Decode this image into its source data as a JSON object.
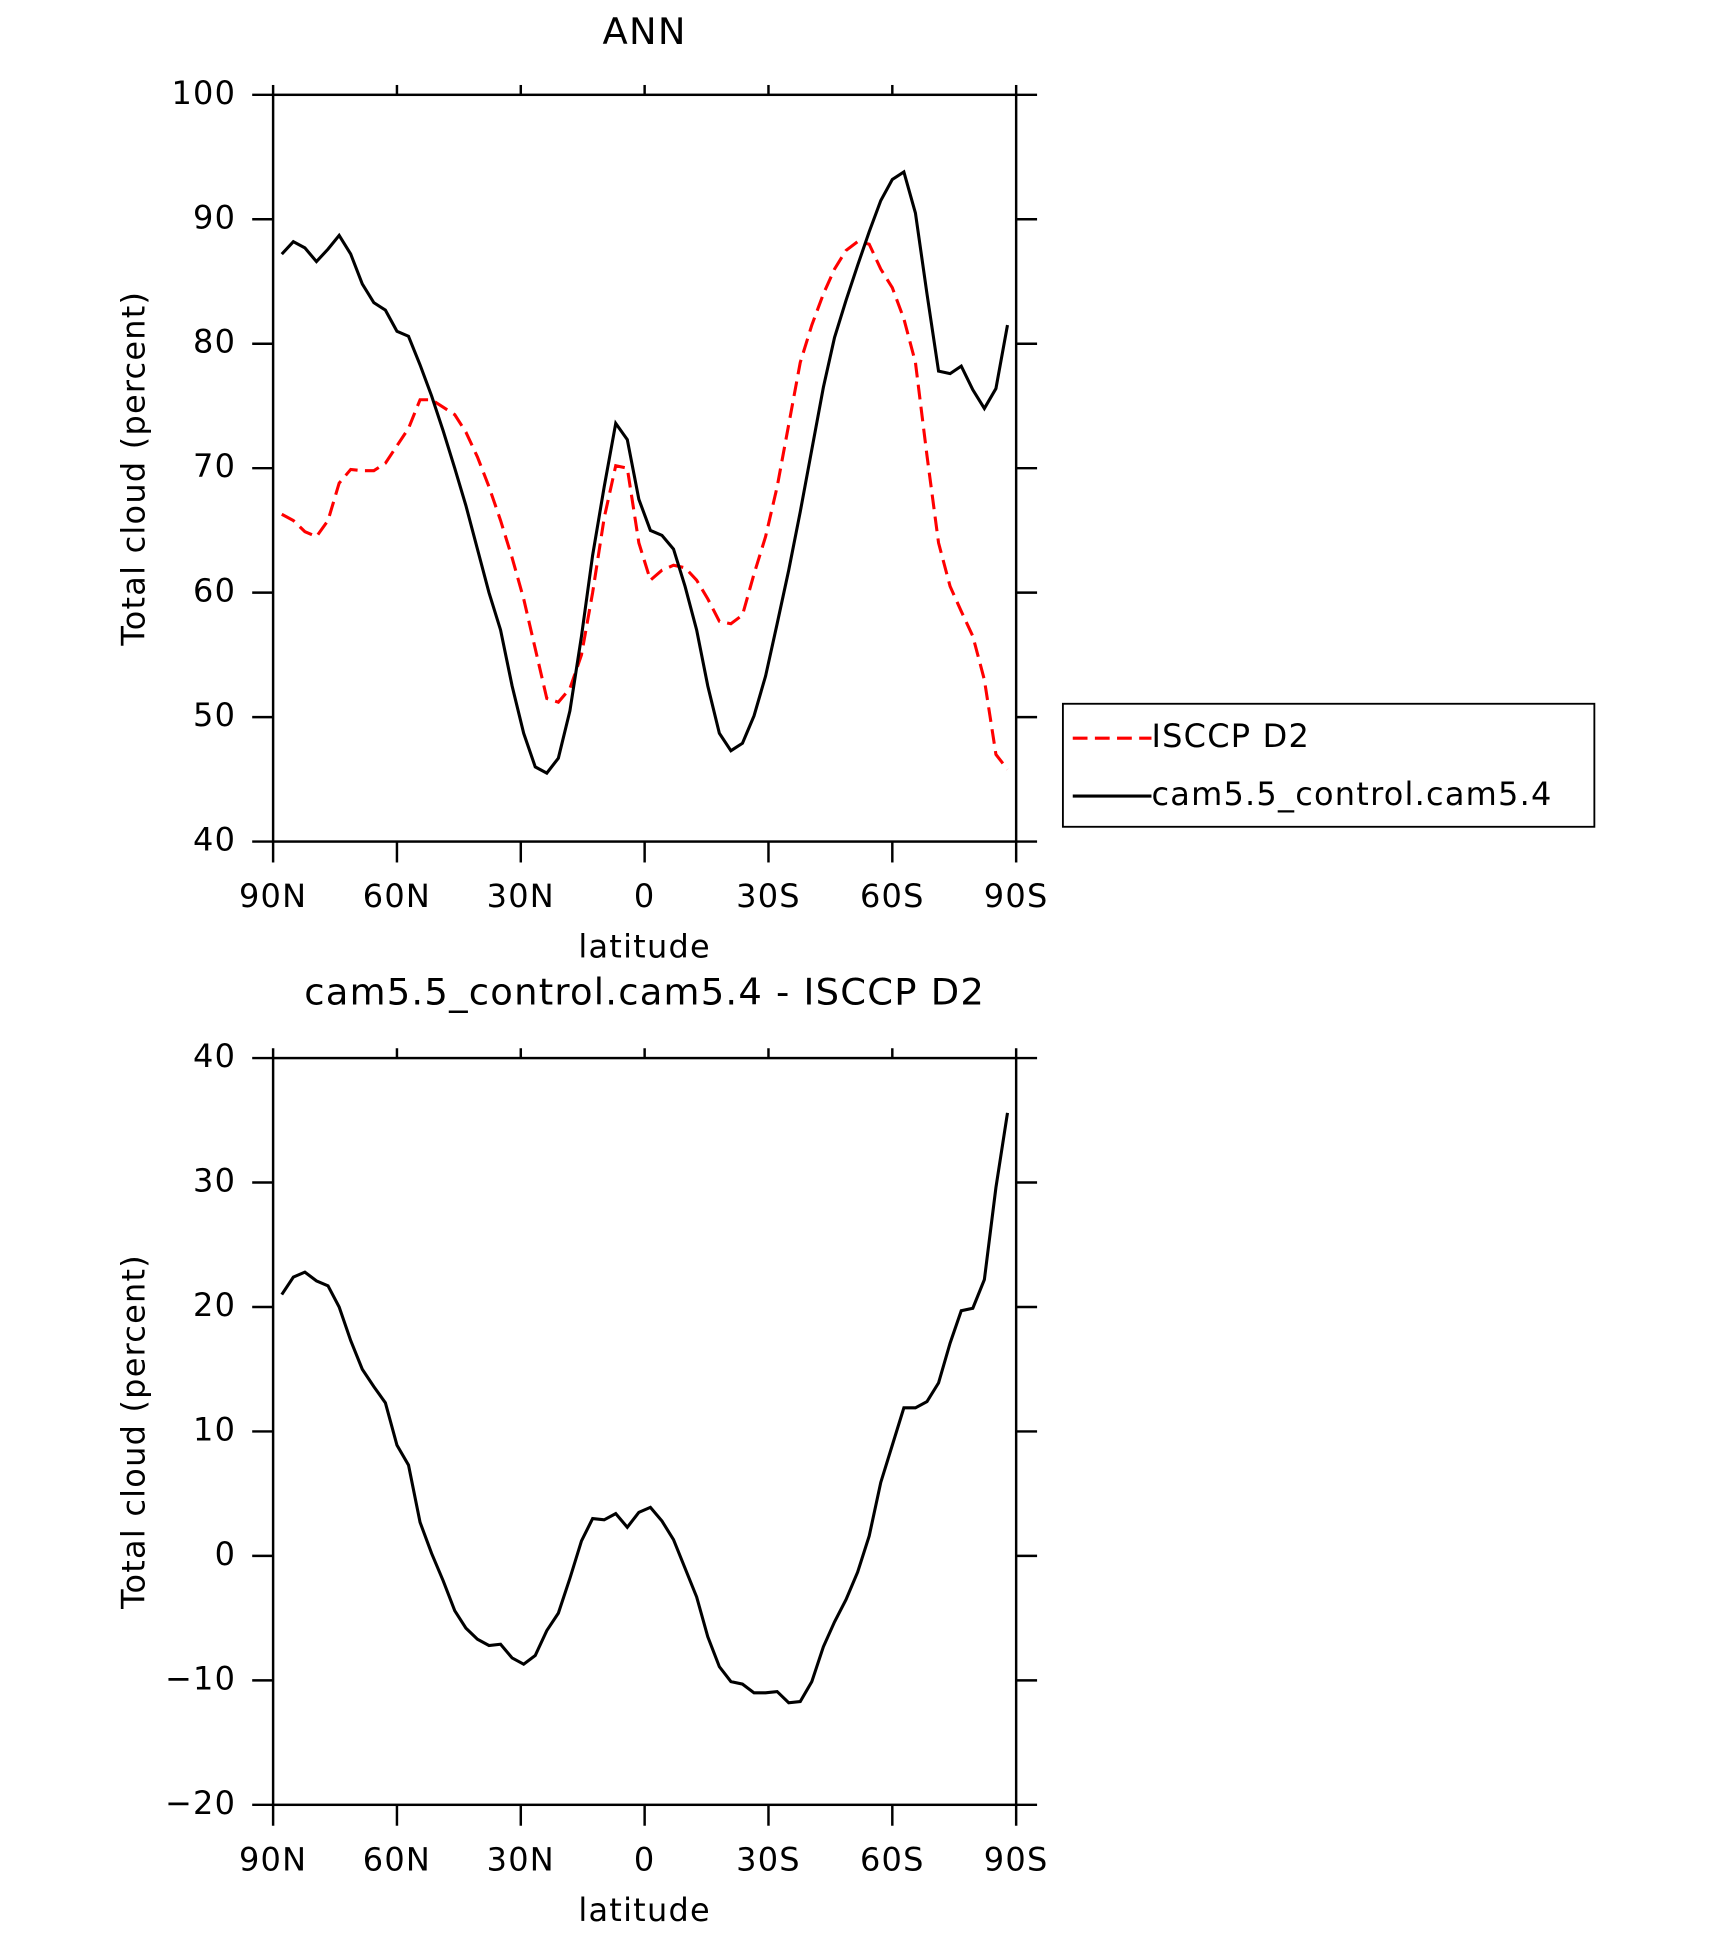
{
  "chart_data": [
    {
      "type": "line",
      "title": "ANN",
      "xlabel": "latitude",
      "ylabel": "Total cloud (percent)",
      "x": [
        87.9,
        85.1,
        82.3,
        79.5,
        76.7,
        74.0,
        71.2,
        68.4,
        65.6,
        62.8,
        60.0,
        57.2,
        54.4,
        51.6,
        48.8,
        46.0,
        43.3,
        40.5,
        37.7,
        34.9,
        32.1,
        29.3,
        26.5,
        23.7,
        20.9,
        18.1,
        15.3,
        12.6,
        9.8,
        7.0,
        4.2,
        1.4,
        -1.4,
        -4.2,
        -7.0,
        -9.8,
        -12.6,
        -15.3,
        -18.1,
        -20.9,
        -23.7,
        -26.5,
        -29.3,
        -32.1,
        -34.9,
        -37.7,
        -40.5,
        -43.3,
        -46.0,
        -48.8,
        -51.6,
        -54.4,
        -57.2,
        -60.0,
        -62.8,
        -65.6,
        -68.4,
        -71.2,
        -74.0,
        -76.7,
        -79.5,
        -82.3,
        -85.1,
        -87.9
      ],
      "series": [
        {
          "name": "ISCCP D2",
          "color": "#ff0000",
          "line_style": "dashed",
          "values": [
            66.3,
            65.8,
            64.9,
            64.5,
            65.8,
            68.8,
            69.9,
            69.8,
            69.8,
            70.4,
            71.8,
            73.2,
            75.5,
            75.5,
            74.9,
            74.3,
            72.9,
            70.9,
            68.5,
            65.8,
            62.8,
            59.5,
            55.5,
            51.5,
            51.2,
            52.3,
            55.0,
            60.0,
            66.0,
            70.2,
            70.0,
            64.0,
            61.0,
            61.8,
            62.2,
            62.0,
            61.0,
            59.5,
            57.7,
            57.5,
            58.2,
            61.5,
            64.5,
            68.5,
            73.5,
            78.5,
            81.5,
            84.0,
            86.0,
            87.5,
            88.2,
            88.0,
            86.0,
            84.5,
            82.0,
            78.5,
            71.0,
            64.0,
            60.5,
            58.5,
            56.5,
            53.0,
            47.0,
            45.8
          ]
        },
        {
          "name": "cam5.5_control.cam5.4",
          "color": "#000000",
          "line_style": "solid",
          "values": [
            87.2,
            88.2,
            87.7,
            86.6,
            87.6,
            88.7,
            87.2,
            84.8,
            83.3,
            82.7,
            81.0,
            80.6,
            78.3,
            75.8,
            73.0,
            70.0,
            67.0,
            63.5,
            60.0,
            57.0,
            52.5,
            48.7,
            46.0,
            45.5,
            46.7,
            50.5,
            56.5,
            63.0,
            68.5,
            73.6,
            72.3,
            67.5,
            65.0,
            64.6,
            63.5,
            60.5,
            57.0,
            52.5,
            48.7,
            47.3,
            47.9,
            50.1,
            53.3,
            57.5,
            61.8,
            66.5,
            71.5,
            76.5,
            80.5,
            83.5,
            86.3,
            89.0,
            91.5,
            93.2,
            93.8,
            90.5,
            84.0,
            77.8,
            77.6,
            78.2,
            76.3,
            74.8,
            76.4,
            81.5
          ]
        }
      ],
      "xlim": [
        90,
        -90
      ],
      "xticks": [
        {
          "value": 90,
          "label": "90N"
        },
        {
          "value": 60,
          "label": "60N"
        },
        {
          "value": 30,
          "label": "30N"
        },
        0,
        {
          "value": -30,
          "label": "30S"
        },
        {
          "value": -60,
          "label": "60S"
        },
        {
          "value": -90,
          "label": "90S"
        }
      ],
      "ylim": [
        40,
        100
      ],
      "yticks": [
        40,
        50,
        60,
        70,
        80,
        90,
        100
      ],
      "legend": "right"
    },
    {
      "type": "line",
      "title": "cam5.5_control.cam5.4 - ISCCP D2",
      "xlabel": "latitude",
      "ylabel": "Total cloud (percent)",
      "x": [
        87.9,
        85.1,
        82.3,
        79.5,
        76.7,
        74.0,
        71.2,
        68.4,
        65.6,
        62.8,
        60.0,
        57.2,
        54.4,
        51.6,
        48.8,
        46.0,
        43.3,
        40.5,
        37.7,
        34.9,
        32.1,
        29.3,
        26.5,
        23.7,
        20.9,
        18.1,
        15.3,
        12.6,
        9.8,
        7.0,
        4.2,
        1.4,
        -1.4,
        -4.2,
        -7.0,
        -9.8,
        -12.6,
        -15.3,
        -18.1,
        -20.9,
        -23.7,
        -26.5,
        -29.3,
        -32.1,
        -34.9,
        -37.7,
        -40.5,
        -43.3,
        -46.0,
        -48.8,
        -51.6,
        -54.4,
        -57.2,
        -60.0,
        -62.8,
        -65.6,
        -68.4,
        -71.2,
        -74.0,
        -76.7,
        -79.5,
        -82.3,
        -85.1,
        -87.9
      ],
      "series": [
        {
          "color": "#000000",
          "line_style": "solid",
          "values": [
            21.0,
            22.4,
            22.8,
            22.1,
            21.7,
            20.0,
            17.3,
            15.0,
            13.6,
            12.3,
            8.9,
            7.3,
            2.7,
            0.2,
            -2.0,
            -4.4,
            -5.8,
            -6.7,
            -7.2,
            -7.1,
            -8.2,
            -8.7,
            -8.0,
            -6.0,
            -4.6,
            -1.8,
            1.2,
            3.0,
            2.9,
            3.4,
            2.3,
            3.5,
            3.9,
            2.8,
            1.3,
            -1.0,
            -3.3,
            -6.5,
            -8.9,
            -10.1,
            -10.3,
            -11.0,
            -11.0,
            -10.9,
            -11.8,
            -11.7,
            -10.1,
            -7.3,
            -5.3,
            -3.5,
            -1.3,
            1.6,
            5.9,
            8.9,
            11.9,
            11.9,
            12.4,
            13.9,
            17.1,
            19.7,
            19.9,
            22.2,
            29.6,
            35.6
          ]
        }
      ],
      "xlim": [
        90,
        -90
      ],
      "xticks": [
        {
          "value": 90,
          "label": "90N"
        },
        {
          "value": 60,
          "label": "60N"
        },
        {
          "value": 30,
          "label": "30N"
        },
        0,
        {
          "value": -30,
          "label": "30S"
        },
        {
          "value": -60,
          "label": "60S"
        },
        {
          "value": -90,
          "label": "90S"
        }
      ],
      "ylim": [
        -20,
        40
      ],
      "yticks": [
        {
          "value": -20,
          "label": "−20"
        },
        {
          "value": -10,
          "label": "−10"
        },
        0,
        10,
        20,
        30,
        40
      ]
    }
  ]
}
